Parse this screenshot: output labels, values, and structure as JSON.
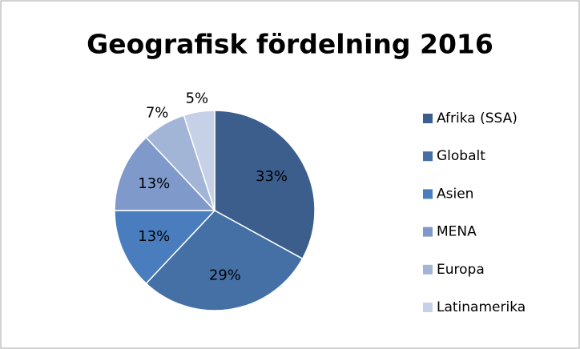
{
  "chart_data": {
    "type": "pie",
    "title": "Geografisk fördelning 2016",
    "categories": [
      "Afrika (SSA)",
      "Globalt",
      "Asien",
      "MENA",
      "Europa",
      "Latinamerika"
    ],
    "values": [
      33,
      29,
      13,
      13,
      7,
      5
    ],
    "value_labels": [
      "33%",
      "29%",
      "13%",
      "13%",
      "7%",
      "5%"
    ],
    "colors": [
      "#3b5e8c",
      "#4470a6",
      "#4a7dbd",
      "#7f99cb",
      "#a3b5d7",
      "#c6d1e7"
    ],
    "legend": "right"
  }
}
